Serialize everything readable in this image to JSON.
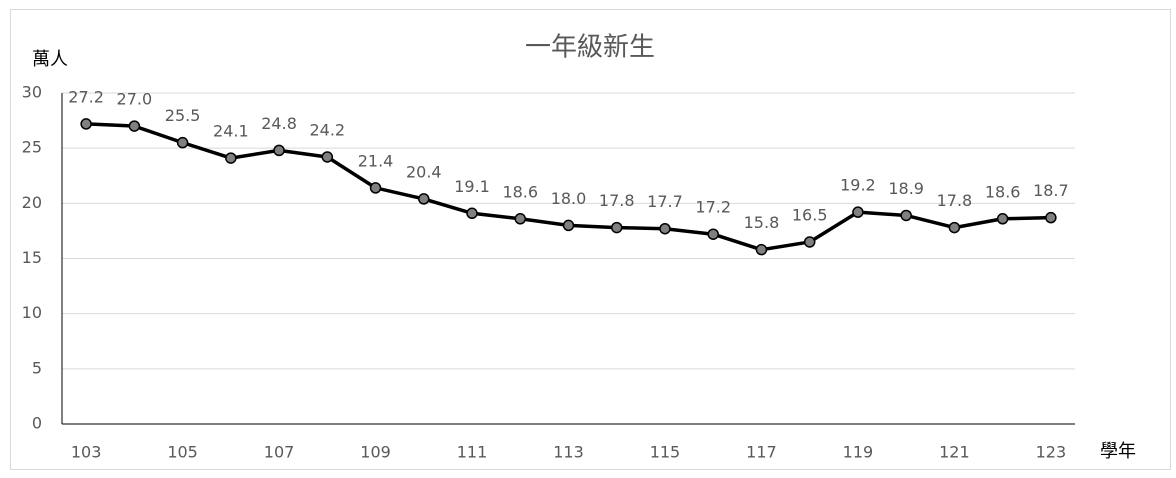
{
  "chart_data": {
    "type": "line",
    "title": "一年級新生",
    "y_label": "萬人",
    "x_label": "學年",
    "categories": [
      "103",
      null,
      "105",
      null,
      "107",
      null,
      "109",
      null,
      "111",
      null,
      "113",
      null,
      "115",
      null,
      "117",
      null,
      "119",
      null,
      "121",
      null,
      "123"
    ],
    "series": [
      {
        "name": "一年級新生",
        "color": "#000000",
        "marker_color": "#808080",
        "values": [
          27.2,
          27.0,
          25.5,
          24.1,
          24.8,
          24.2,
          21.4,
          20.4,
          19.1,
          18.6,
          18.0,
          17.8,
          17.7,
          17.2,
          15.8,
          16.5,
          19.2,
          18.9,
          17.8,
          18.6,
          18.7
        ],
        "value_labels": [
          "27.2",
          "27.0",
          "25.5",
          "24.1",
          "24.8",
          "24.2",
          "21.4",
          "20.4",
          "19.1",
          "18.6",
          "18.0",
          "17.8",
          "17.7",
          "17.2",
          "15.8",
          "16.5",
          "19.2",
          "18.9",
          "17.8",
          "18.6",
          "18.7"
        ]
      }
    ],
    "ylim": [
      0,
      30
    ],
    "yticks": [
      0,
      5,
      10,
      15,
      20,
      25,
      30
    ],
    "grid": true
  }
}
